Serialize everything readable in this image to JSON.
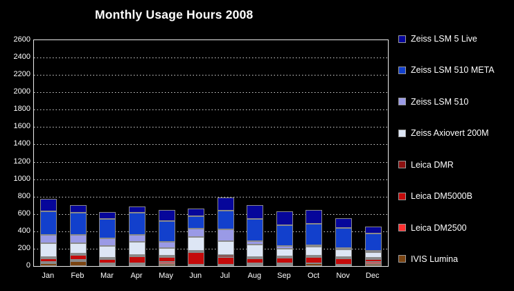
{
  "title": "Monthly Usage Hours 2008",
  "chart_data": {
    "type": "bar",
    "stacked": true,
    "title": "Monthly Usage Hours 2008",
    "categories": [
      "Jan",
      "Feb",
      "Mar",
      "Apr",
      "May",
      "Jun",
      "Jul",
      "Aug",
      "Sep",
      "Oct",
      "Nov",
      "Dec"
    ],
    "series": [
      {
        "name": "Zeiss LSM 5 Live",
        "color": "#06069A",
        "values": [
          150,
          85,
          80,
          75,
          125,
          85,
          150,
          160,
          160,
          160,
          110,
          80
        ]
      },
      {
        "name": "Zeiss LSM 510 META",
        "color": "#1240CC",
        "values": [
          265,
          255,
          225,
          250,
          245,
          150,
          215,
          255,
          240,
          250,
          230,
          200
        ]
      },
      {
        "name": "Zeiss LSM 510",
        "color": "#9A9AE6",
        "values": [
          95,
          95,
          85,
          80,
          65,
          90,
          135,
          40,
          30,
          15,
          15,
          15
        ]
      },
      {
        "name": "Zeiss Axiovert 200M",
        "color": "#DDE6F5",
        "values": [
          160,
          125,
          135,
          155,
          95,
          165,
          165,
          145,
          90,
          100,
          90,
          65
        ]
      },
      {
        "name": "Leica DMR",
        "color": "#8B1111",
        "values": [
          10,
          10,
          10,
          10,
          15,
          10,
          20,
          10,
          10,
          10,
          5,
          5
        ]
      },
      {
        "name": "Leica DM5000B",
        "color": "#C40A0A",
        "values": [
          40,
          55,
          50,
          80,
          55,
          140,
          90,
          50,
          60,
          75,
          70,
          35
        ]
      },
      {
        "name": "Leica DM2500",
        "color": "#FF3030",
        "values": [
          10,
          10,
          10,
          10,
          20,
          10,
          10,
          20,
          10,
          0,
          10,
          20
        ]
      },
      {
        "name": "IVIS Lumina",
        "color": "#7A4412",
        "values": [
          35,
          55,
          15,
          5,
          25,
          0,
          0,
          10,
          5,
          30,
          0,
          25
        ]
      }
    ],
    "stack_order_bottom_to_top": [
      "IVIS Lumina",
      "Leica DM2500",
      "Leica DM5000B",
      "Leica DMR",
      "Zeiss Axiovert 200M",
      "Zeiss LSM 510",
      "Zeiss LSM 510 META",
      "Zeiss LSM 5 Live"
    ],
    "totals": [
      765,
      690,
      610,
      665,
      645,
      650,
      785,
      690,
      605,
      640,
      530,
      445
    ],
    "xlabel": "",
    "ylabel": "",
    "ylim": [
      0,
      2600
    ],
    "y_tick_step": 200,
    "y_tick_labels": [
      "0",
      "200",
      "400",
      "600",
      "800",
      "1000",
      "1200",
      "1400",
      "1600",
      "1800",
      "2000",
      "2200",
      "2400",
      "2600"
    ],
    "grid": "horizontal-dotted",
    "legend_position": "right",
    "background": "#000000",
    "text_color": "#FFFFFF",
    "segment_border_color": "#8A8A8A",
    "plot_frame_color": "#ECECEC"
  }
}
